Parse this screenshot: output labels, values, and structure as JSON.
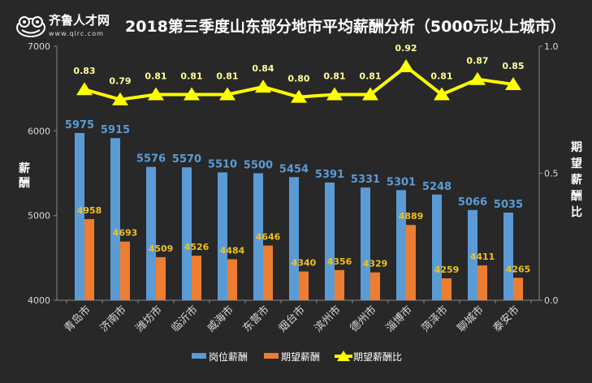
{
  "logo": {
    "name": "齐鲁人才网",
    "url": "www.qlrc.com"
  },
  "chart_data": {
    "type": "bar",
    "title": "2018第三季度山东部分地市平均薪酬分析（5000元以上城市）",
    "categories": [
      "青岛市",
      "济南市",
      "潍坊市",
      "临沂市",
      "威海市",
      "东营市",
      "烟台市",
      "滨州市",
      "德州市",
      "淄博市",
      "菏泽市",
      "聊城市",
      "泰安市"
    ],
    "series": [
      {
        "name": "岗位薪酬",
        "type": "bar",
        "axis": "left",
        "color": "#5b9bd5",
        "values": [
          5975,
          5915,
          5576,
          5570,
          5510,
          5500,
          5454,
          5391,
          5331,
          5301,
          5248,
          5066,
          5035
        ]
      },
      {
        "name": "期望薪酬",
        "type": "bar",
        "axis": "left",
        "color": "#ed7d31",
        "values": [
          4958,
          4693,
          4509,
          4526,
          4484,
          4646,
          4340,
          4356,
          4329,
          4889,
          4259,
          4411,
          4265
        ]
      },
      {
        "name": "期望薪酬比",
        "type": "line",
        "axis": "right",
        "color": "#ffff00",
        "marker": "triangle",
        "values": [
          0.83,
          0.79,
          0.81,
          0.81,
          0.81,
          0.84,
          0.8,
          0.81,
          0.81,
          0.92,
          0.81,
          0.87,
          0.85
        ]
      }
    ],
    "ylabel": "薪酬",
    "ylim": [
      4000,
      7000
    ],
    "yticks": [
      4000,
      5000,
      6000,
      7000
    ],
    "y2label": "期望薪酬比",
    "y2lim": [
      0,
      1.0
    ],
    "y2ticks": [
      "0.0",
      "0.5",
      "1.0"
    ],
    "grid": false,
    "legend": "bottom"
  }
}
